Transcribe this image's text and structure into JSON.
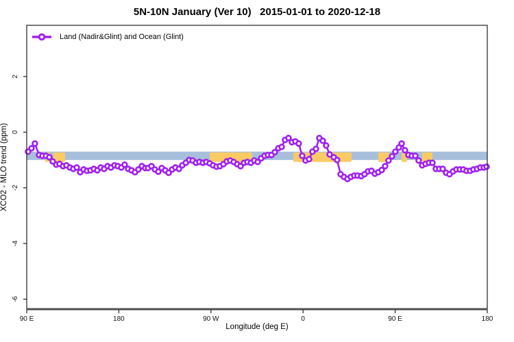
{
  "title": "5N-10N January (Ver 10)   2015-01-01 to 2020-12-18",
  "legend": {
    "label": "Land (Nadir&Glint) and Ocean (Glint)"
  },
  "colors": {
    "series": "#A020F0",
    "reference_band": "#A8BFDC",
    "highlight": "#FBCB63",
    "axis_box": "#2e2e2e",
    "axis_line": "#4d4d4d"
  },
  "chart_data": {
    "type": "line",
    "title": "5N-10N January (Ver 10)   2015-01-01 to 2020-12-18",
    "xlabel": "Longitude (deg E)",
    "ylabel": "XCO2 - MLO trend (ppm)",
    "grid": false,
    "legend_position": "top-left",
    "x_axis_note": "longitude unwrapped eastward from 90E; degrees east of 90E",
    "xlim": [
      0,
      450
    ],
    "ylim": [
      -6.36,
      3.84
    ],
    "x_ticks": [
      {
        "pos": 0,
        "label": "90 E"
      },
      {
        "pos": 90,
        "label": "180"
      },
      {
        "pos": 180,
        "label": "90 W"
      },
      {
        "pos": 270,
        "label": "0"
      },
      {
        "pos": 360,
        "label": "90 E"
      },
      {
        "pos": 450,
        "label": "180"
      }
    ],
    "y_ticks": [
      {
        "pos": 2,
        "label": "2"
      },
      {
        "pos": 0,
        "label": "0"
      },
      {
        "pos": -2,
        "label": "-2"
      },
      {
        "pos": -4,
        "label": "-4"
      },
      {
        "pos": -6,
        "label": "-6"
      }
    ],
    "reference_band": {
      "y_from": -0.7,
      "y_to": -1.0,
      "color": "#A8BFDC"
    },
    "highlight_segments": {
      "color": "#FBCB63",
      "y_from": -0.73,
      "y_to": -1.07,
      "x_ranges": [
        [
          18,
          23
        ],
        [
          26,
          37.5
        ],
        [
          178.8,
          220.3
        ],
        [
          260.5,
          317.4
        ],
        [
          343.5,
          354.2
        ],
        [
          366.3,
          371.6
        ],
        [
          386.4,
          396.4
        ]
      ]
    },
    "series": [
      {
        "name": "Land (Nadir&Glint) and Ocean (Glint)",
        "color": "#A020F0",
        "marker": "open-circle",
        "points": [
          [
            1.3,
            -0.7
          ],
          [
            4.7,
            -0.58
          ],
          [
            8.0,
            -0.41
          ],
          [
            12.1,
            -0.82
          ],
          [
            15.4,
            -0.85
          ],
          [
            18.8,
            -0.85
          ],
          [
            22.1,
            -0.9
          ],
          [
            25.4,
            -1.05
          ],
          [
            28.8,
            -1.17
          ],
          [
            32.1,
            -1.14
          ],
          [
            35.5,
            -1.22
          ],
          [
            38.8,
            -1.19
          ],
          [
            42.2,
            -1.27
          ],
          [
            45.5,
            -1.32
          ],
          [
            48.9,
            -1.27
          ],
          [
            52.2,
            -1.44
          ],
          [
            55.6,
            -1.34
          ],
          [
            58.9,
            -1.39
          ],
          [
            62.3,
            -1.37
          ],
          [
            65.6,
            -1.32
          ],
          [
            69.0,
            -1.37
          ],
          [
            72.3,
            -1.27
          ],
          [
            75.6,
            -1.32
          ],
          [
            79.0,
            -1.22
          ],
          [
            82.3,
            -1.27
          ],
          [
            85.7,
            -1.19
          ],
          [
            89.0,
            -1.22
          ],
          [
            92.4,
            -1.27
          ],
          [
            95.7,
            -1.17
          ],
          [
            99.1,
            -1.32
          ],
          [
            102.4,
            -1.37
          ],
          [
            105.8,
            -1.44
          ],
          [
            109.1,
            -1.34
          ],
          [
            112.5,
            -1.22
          ],
          [
            115.8,
            -1.29
          ],
          [
            118.5,
            -1.29
          ],
          [
            121.9,
            -1.22
          ],
          [
            125.2,
            -1.34
          ],
          [
            128.6,
            -1.42
          ],
          [
            131.9,
            -1.29
          ],
          [
            135.3,
            -1.37
          ],
          [
            138.6,
            -1.46
          ],
          [
            142.0,
            -1.34
          ],
          [
            145.3,
            -1.27
          ],
          [
            148.7,
            -1.32
          ],
          [
            152.0,
            -1.19
          ],
          [
            155.4,
            -1.1
          ],
          [
            158.7,
            -1.0
          ],
          [
            162.1,
            -1.02
          ],
          [
            165.4,
            -1.1
          ],
          [
            168.8,
            -1.07
          ],
          [
            172.1,
            -1.1
          ],
          [
            175.4,
            -1.07
          ],
          [
            178.8,
            -1.12
          ],
          [
            182.1,
            -1.19
          ],
          [
            185.5,
            -1.24
          ],
          [
            188.8,
            -1.22
          ],
          [
            192.2,
            -1.15
          ],
          [
            195.5,
            -1.05
          ],
          [
            198.9,
            -1.02
          ],
          [
            202.2,
            -1.07
          ],
          [
            205.6,
            -1.15
          ],
          [
            208.9,
            -1.22
          ],
          [
            212.3,
            -1.1
          ],
          [
            215.6,
            -1.07
          ],
          [
            219.0,
            -1.1
          ],
          [
            222.3,
            -1.02
          ],
          [
            225.7,
            -1.07
          ],
          [
            229.0,
            -0.94
          ],
          [
            232.4,
            -0.85
          ],
          [
            235.7,
            -0.82
          ],
          [
            239.1,
            -0.82
          ],
          [
            242.4,
            -0.72
          ],
          [
            245.8,
            -0.58
          ],
          [
            249.1,
            -0.53
          ],
          [
            252.4,
            -0.28
          ],
          [
            255.8,
            -0.21
          ],
          [
            259.1,
            -0.36
          ],
          [
            262.5,
            -0.33
          ],
          [
            265.8,
            -0.41
          ],
          [
            269.2,
            -0.85
          ],
          [
            272.5,
            -1.02
          ],
          [
            275.9,
            -0.97
          ],
          [
            279.2,
            -0.7
          ],
          [
            282.6,
            -0.6
          ],
          [
            285.9,
            -0.21
          ],
          [
            289.3,
            -0.31
          ],
          [
            292.6,
            -0.48
          ],
          [
            296.0,
            -0.8
          ],
          [
            300.0,
            -0.9
          ],
          [
            303.3,
            -1.0
          ],
          [
            306.7,
            -1.51
          ],
          [
            310.0,
            -1.61
          ],
          [
            313.4,
            -1.68
          ],
          [
            316.7,
            -1.61
          ],
          [
            320.1,
            -1.56
          ],
          [
            323.4,
            -1.56
          ],
          [
            326.8,
            -1.58
          ],
          [
            330.1,
            -1.51
          ],
          [
            333.5,
            -1.41
          ],
          [
            336.8,
            -1.39
          ],
          [
            340.2,
            -1.49
          ],
          [
            343.5,
            -1.44
          ],
          [
            346.9,
            -1.36
          ],
          [
            350.2,
            -1.22
          ],
          [
            353.5,
            -1.02
          ],
          [
            356.9,
            -0.87
          ],
          [
            360.2,
            -0.7
          ],
          [
            363.6,
            -0.55
          ],
          [
            366.3,
            -0.41
          ],
          [
            369.6,
            -0.65
          ],
          [
            373.0,
            -0.82
          ],
          [
            376.3,
            -0.85
          ],
          [
            379.7,
            -0.85
          ],
          [
            383.0,
            -1.02
          ],
          [
            386.4,
            -1.19
          ],
          [
            389.7,
            -1.14
          ],
          [
            393.0,
            -1.1
          ],
          [
            396.4,
            -1.1
          ],
          [
            399.7,
            -1.32
          ],
          [
            403.1,
            -1.32
          ],
          [
            406.4,
            -1.32
          ],
          [
            409.8,
            -1.46
          ],
          [
            413.1,
            -1.51
          ],
          [
            416.5,
            -1.41
          ],
          [
            419.8,
            -1.34
          ],
          [
            423.2,
            -1.34
          ],
          [
            426.5,
            -1.34
          ],
          [
            429.8,
            -1.39
          ],
          [
            433.2,
            -1.39
          ],
          [
            436.5,
            -1.34
          ],
          [
            439.9,
            -1.32
          ],
          [
            443.2,
            -1.27
          ],
          [
            446.6,
            -1.27
          ],
          [
            449.3,
            -1.24
          ]
        ]
      }
    ]
  }
}
